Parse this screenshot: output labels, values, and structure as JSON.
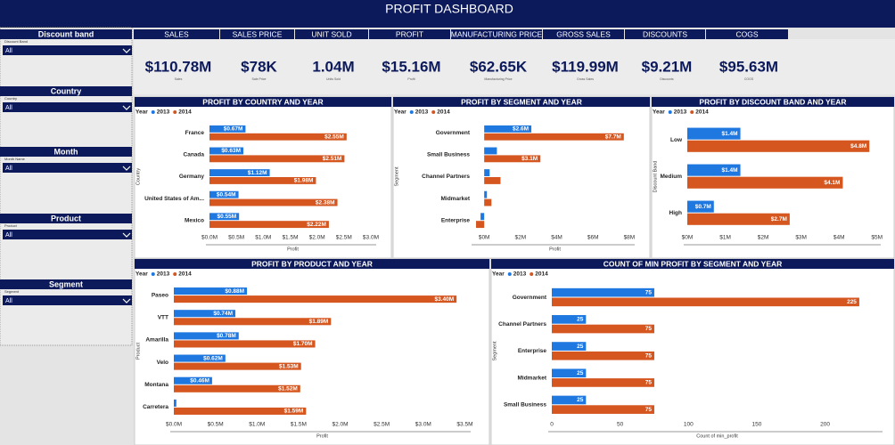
{
  "header": {
    "title": "PROFIT DASHBOARD"
  },
  "slicers": [
    {
      "title": "Discount band",
      "label": "Discount Band",
      "value": "All"
    },
    {
      "title": "Country",
      "label": "Country",
      "value": "All"
    },
    {
      "title": "Month",
      "label": "Month Name",
      "value": "All"
    },
    {
      "title": "Product",
      "label": "Product",
      "value": "All"
    },
    {
      "title": "Segment",
      "label": "Segment",
      "value": "All"
    }
  ],
  "kpis": [
    {
      "header": "SALES",
      "value": "$110.78M",
      "caption": "Sales"
    },
    {
      "header": "SALES PRICE",
      "value": "$78K",
      "caption": "Sale Price"
    },
    {
      "header": "UNIT SOLD",
      "value": "1.04M",
      "caption": "Units Sold"
    },
    {
      "header": "PROFIT",
      "value": "$15.16M",
      "caption": "Profit"
    },
    {
      "header": "MANUFACTURING PRICE",
      "value": "$62.65K",
      "caption": "Manufacturing Price"
    },
    {
      "header": "GROSS SALES",
      "value": "$119.99M",
      "caption": "Gross Sales"
    },
    {
      "header": "DISCOUNTS",
      "value": "$9.21M",
      "caption": "Discounts"
    },
    {
      "header": "COGS",
      "value": "$95.63M",
      "caption": "COGS"
    }
  ],
  "chart_data": [
    {
      "type": "bar",
      "orientation": "horizontal",
      "title": "PROFIT BY COUNTRY AND YEAR",
      "legend_title": "Year",
      "x_label": "Profit",
      "y_label": "Country",
      "categories": [
        "France",
        "Canada",
        "Germany",
        "United States of Am...",
        "Mexico"
      ],
      "series": [
        {
          "name": "2013",
          "color": "#1f77e0",
          "values": [
            0.67,
            0.63,
            1.12,
            0.54,
            0.55
          ],
          "value_labels": [
            "$0.67M",
            "$0.63M",
            "$1.12M",
            "$0.54M",
            "$0.55M"
          ]
        },
        {
          "name": "2014",
          "color": "#d5561f",
          "values": [
            2.55,
            2.51,
            1.98,
            2.38,
            2.22
          ],
          "value_labels": [
            "$2.55M",
            "$2.51M",
            "$1.98M",
            "$2.38M",
            "$2.22M"
          ]
        }
      ],
      "xlim": [
        0,
        3.1
      ],
      "xticks": [
        {
          "value": 0,
          "label": "$0.0M"
        },
        {
          "value": 0.5,
          "label": "$0.5M"
        },
        {
          "value": 1,
          "label": "$1.0M"
        },
        {
          "value": 1.5,
          "label": "$1.5M"
        },
        {
          "value": 2,
          "label": "$2.0M"
        },
        {
          "value": 2.5,
          "label": "$2.5M"
        },
        {
          "value": 3,
          "label": "$3.0M"
        }
      ],
      "grid": false
    },
    {
      "type": "bar",
      "orientation": "horizontal",
      "title": "PROFIT BY SEGMENT AND YEAR",
      "legend_title": "Year",
      "x_label": "Profit",
      "y_label": "Segment",
      "categories": [
        "Government",
        "Small Business",
        "Channel Partners",
        "Midmarket",
        "Enterprise"
      ],
      "series": [
        {
          "name": "2013",
          "color": "#1f77e0",
          "values": [
            2.6,
            0.7,
            0.3,
            0.15,
            -0.2
          ],
          "value_labels": [
            "$2.6M",
            null,
            null,
            null,
            null
          ]
        },
        {
          "name": "2014",
          "color": "#d5561f",
          "values": [
            7.7,
            3.1,
            0.9,
            0.4,
            -0.45
          ],
          "value_labels": [
            "$7.7M",
            "$3.1M",
            null,
            null,
            null
          ]
        }
      ],
      "xlim": [
        -0.5,
        8.3
      ],
      "xticks": [
        {
          "value": 0,
          "label": "$0M"
        },
        {
          "value": 2,
          "label": "$2M"
        },
        {
          "value": 4,
          "label": "$4M"
        },
        {
          "value": 6,
          "label": "$6M"
        },
        {
          "value": 8,
          "label": "$8M"
        }
      ],
      "grid": false
    },
    {
      "type": "bar",
      "orientation": "horizontal",
      "title": "PROFIT BY DISCOUNT BAND AND YEAR",
      "legend_title": "Year",
      "y_label": "Discount Band",
      "categories": [
        "Low",
        "Medium",
        "High"
      ],
      "series": [
        {
          "name": "2013",
          "color": "#1f77e0",
          "values": [
            1.4,
            1.4,
            0.7
          ],
          "value_labels": [
            "$1.4M",
            "$1.4M",
            "$0.7M"
          ]
        },
        {
          "name": "2014",
          "color": "#d5561f",
          "values": [
            4.8,
            4.1,
            2.7
          ],
          "value_labels": [
            "$4.8M",
            "$4.1M",
            "$2.7M"
          ]
        }
      ],
      "xlim": [
        0,
        5.1
      ],
      "xticks": [
        {
          "value": 0,
          "label": "$0M"
        },
        {
          "value": 1,
          "label": "$1M"
        },
        {
          "value": 2,
          "label": "$2M"
        },
        {
          "value": 3,
          "label": "$3M"
        },
        {
          "value": 4,
          "label": "$4M"
        },
        {
          "value": 5,
          "label": "$5M"
        }
      ],
      "grid": false
    },
    {
      "type": "bar",
      "orientation": "horizontal",
      "title": "PROFIT BY PRODUCT AND YEAR",
      "legend_title": "Year",
      "x_label": "Profit",
      "y_label": "Product",
      "categories": [
        "Paseo",
        "VTT",
        "Amarilla",
        "Velo",
        "Montana",
        "Carretera"
      ],
      "series": [
        {
          "name": "2013",
          "color": "#1f77e0",
          "values": [
            0.88,
            0.74,
            0.78,
            0.62,
            0.46,
            0.03
          ],
          "value_labels": [
            "$0.88M",
            "$0.74M",
            "$0.78M",
            "$0.62M",
            "$0.46M",
            null
          ]
        },
        {
          "name": "2014",
          "color": "#d5561f",
          "values": [
            3.4,
            1.89,
            1.7,
            1.53,
            1.52,
            1.59
          ],
          "value_labels": [
            "$3.40M",
            "$1.89M",
            "$1.70M",
            "$1.53M",
            "$1.52M",
            "$1.59M"
          ]
        }
      ],
      "xlim": [
        0,
        3.57
      ],
      "xticks": [
        {
          "value": 0,
          "label": "$0.0M"
        },
        {
          "value": 0.5,
          "label": "$0.5M"
        },
        {
          "value": 1,
          "label": "$1.0M"
        },
        {
          "value": 1.5,
          "label": "$1.5M"
        },
        {
          "value": 2,
          "label": "$2.0M"
        },
        {
          "value": 2.5,
          "label": "$2.5M"
        },
        {
          "value": 3,
          "label": "$3.0M"
        },
        {
          "value": 3.5,
          "label": "$3.5M"
        }
      ],
      "grid": false
    },
    {
      "type": "bar",
      "orientation": "horizontal",
      "title": "COUNT OF MIN PROFIT BY SEGMENT AND YEAR",
      "legend_title": "Year",
      "x_label": "Count of min_profit",
      "y_label": "Segment",
      "categories": [
        "Government",
        "Channel Partners",
        "Enterprise",
        "Midmarket",
        "Small Business"
      ],
      "series": [
        {
          "name": "2013",
          "color": "#1f77e0",
          "values": [
            75,
            25,
            25,
            25,
            25
          ]
        },
        {
          "name": "2014",
          "color": "#d5561f",
          "values": [
            225,
            75,
            75,
            75,
            75
          ]
        }
      ],
      "xlim": [
        0,
        242
      ],
      "xticks": [
        0,
        50,
        100,
        150,
        200
      ],
      "grid": false
    }
  ]
}
